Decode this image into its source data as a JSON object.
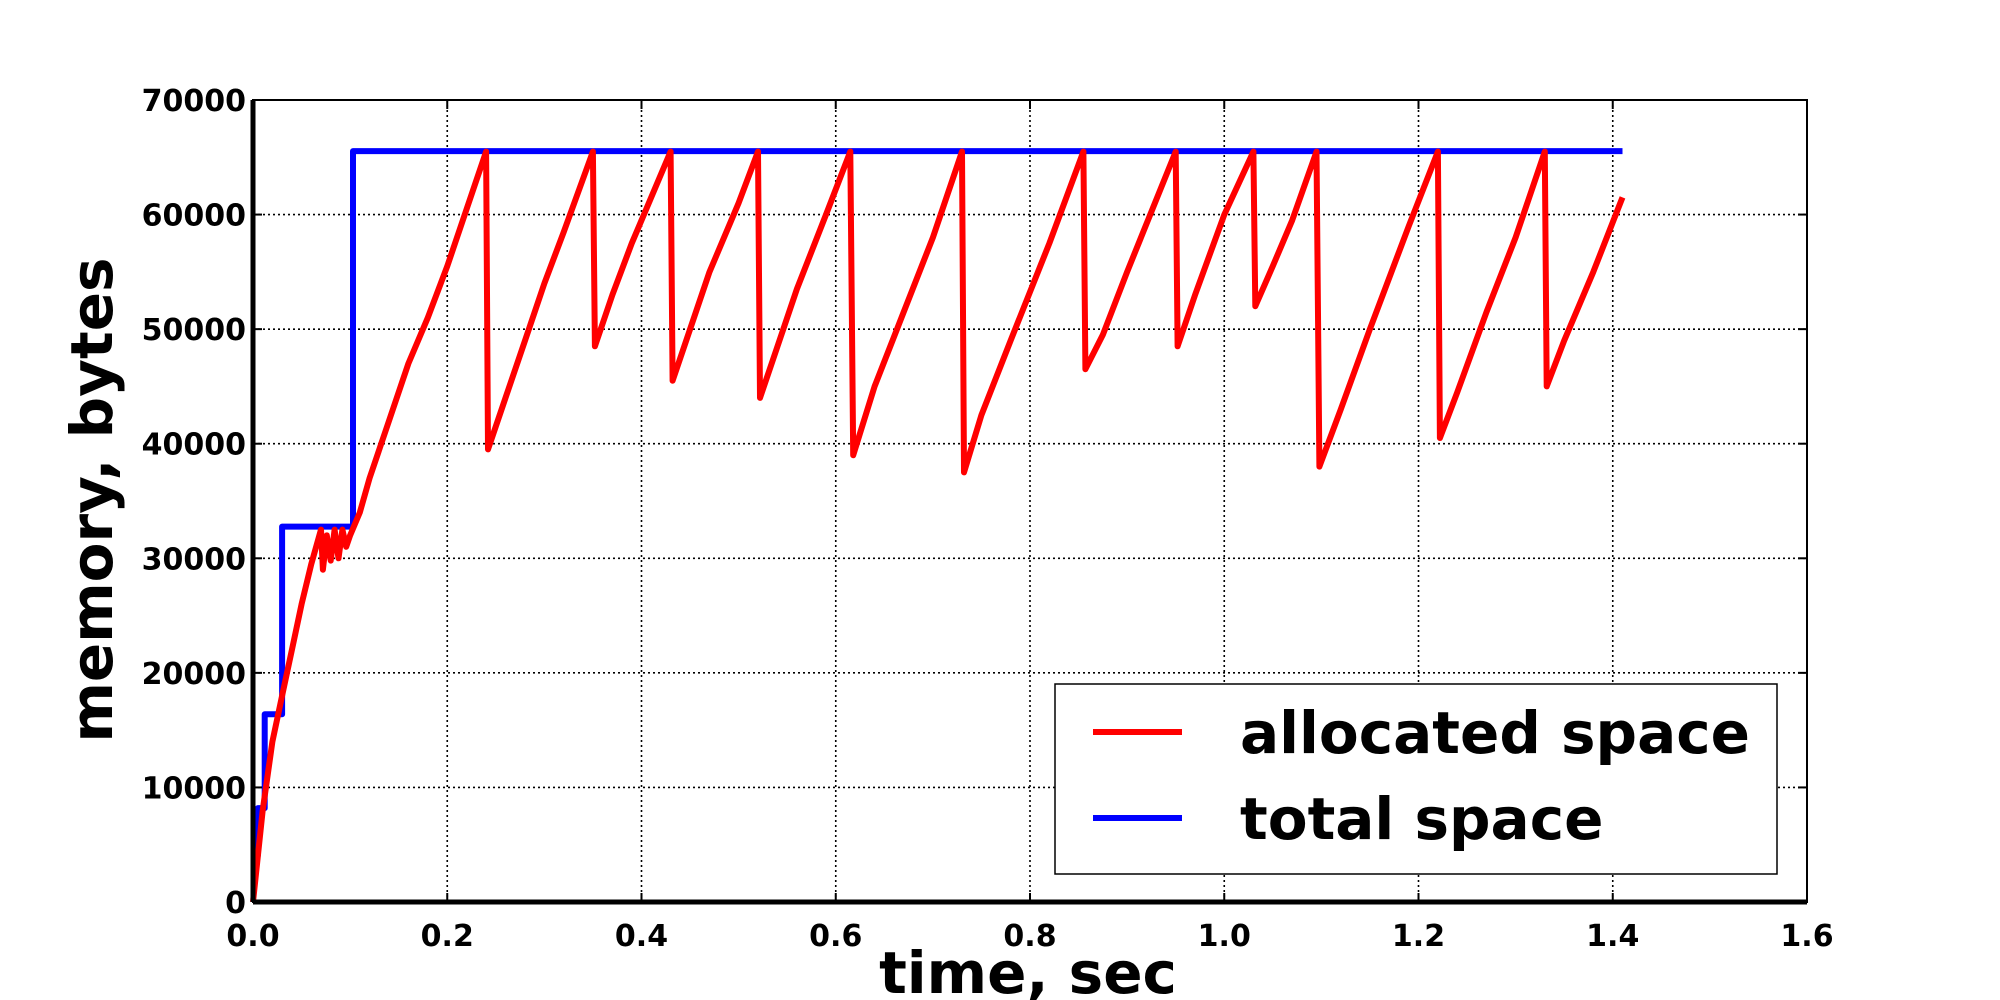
{
  "chart_data": {
    "type": "line",
    "title": "",
    "xlabel": "time, sec",
    "ylabel": "memory, bytes",
    "xlim": [
      0.0,
      1.6
    ],
    "ylim": [
      0,
      70000
    ],
    "xticks": [
      "0.0",
      "0.2",
      "0.4",
      "0.6",
      "0.8",
      "1.0",
      "1.2",
      "1.4",
      "1.6"
    ],
    "yticks": [
      "0",
      "10000",
      "20000",
      "30000",
      "40000",
      "50000",
      "60000",
      "70000"
    ],
    "grid": true,
    "legend_position": "lower-right",
    "series": [
      {
        "name": "allocated space",
        "color": "#ff0000",
        "points": [
          [
            0.0,
            0
          ],
          [
            0.01,
            8000
          ],
          [
            0.02,
            14000
          ],
          [
            0.03,
            18000
          ],
          [
            0.04,
            22000
          ],
          [
            0.05,
            26000
          ],
          [
            0.06,
            29500
          ],
          [
            0.07,
            32500
          ],
          [
            0.072,
            29000
          ],
          [
            0.076,
            32000
          ],
          [
            0.08,
            29800
          ],
          [
            0.084,
            32500
          ],
          [
            0.088,
            30000
          ],
          [
            0.092,
            32500
          ],
          [
            0.096,
            31000
          ],
          [
            0.1,
            32000
          ],
          [
            0.11,
            34000
          ],
          [
            0.12,
            37000
          ],
          [
            0.14,
            42000
          ],
          [
            0.16,
            47000
          ],
          [
            0.18,
            51000
          ],
          [
            0.2,
            55500
          ],
          [
            0.22,
            60500
          ],
          [
            0.24,
            65500
          ],
          [
            0.242,
            39500
          ],
          [
            0.26,
            44000
          ],
          [
            0.28,
            49000
          ],
          [
            0.3,
            54000
          ],
          [
            0.32,
            58500
          ],
          [
            0.35,
            65500
          ],
          [
            0.352,
            48500
          ],
          [
            0.37,
            53000
          ],
          [
            0.39,
            57500
          ],
          [
            0.43,
            65500
          ],
          [
            0.432,
            45500
          ],
          [
            0.45,
            50000
          ],
          [
            0.47,
            55000
          ],
          [
            0.5,
            61000
          ],
          [
            0.52,
            65500
          ],
          [
            0.522,
            44000
          ],
          [
            0.54,
            48500
          ],
          [
            0.56,
            53500
          ],
          [
            0.59,
            60000
          ],
          [
            0.615,
            65500
          ],
          [
            0.618,
            39000
          ],
          [
            0.64,
            45000
          ],
          [
            0.67,
            51500
          ],
          [
            0.7,
            58000
          ],
          [
            0.73,
            65500
          ],
          [
            0.732,
            37500
          ],
          [
            0.75,
            42500
          ],
          [
            0.78,
            49000
          ],
          [
            0.82,
            57500
          ],
          [
            0.855,
            65500
          ],
          [
            0.857,
            46500
          ],
          [
            0.875,
            49500
          ],
          [
            0.9,
            55000
          ],
          [
            0.95,
            65500
          ],
          [
            0.952,
            48500
          ],
          [
            0.97,
            53000
          ],
          [
            1.0,
            60000
          ],
          [
            1.03,
            65500
          ],
          [
            1.032,
            52000
          ],
          [
            1.05,
            55500
          ],
          [
            1.07,
            59500
          ],
          [
            1.095,
            65500
          ],
          [
            1.098,
            38000
          ],
          [
            1.12,
            43000
          ],
          [
            1.15,
            50000
          ],
          [
            1.19,
            59000
          ],
          [
            1.22,
            65500
          ],
          [
            1.222,
            40500
          ],
          [
            1.24,
            44500
          ],
          [
            1.27,
            51500
          ],
          [
            1.3,
            58000
          ],
          [
            1.33,
            65500
          ],
          [
            1.332,
            45000
          ],
          [
            1.35,
            49000
          ],
          [
            1.38,
            55000
          ],
          [
            1.41,
            61500
          ]
        ]
      },
      {
        "name": "total space",
        "color": "#0000ff",
        "points": [
          [
            0.0,
            4096
          ],
          [
            0.005,
            4096
          ],
          [
            0.005,
            8192
          ],
          [
            0.012,
            8192
          ],
          [
            0.012,
            16384
          ],
          [
            0.03,
            16384
          ],
          [
            0.03,
            32768
          ],
          [
            0.103,
            32768
          ],
          [
            0.103,
            65536
          ],
          [
            1.41,
            65536
          ]
        ]
      }
    ]
  }
}
